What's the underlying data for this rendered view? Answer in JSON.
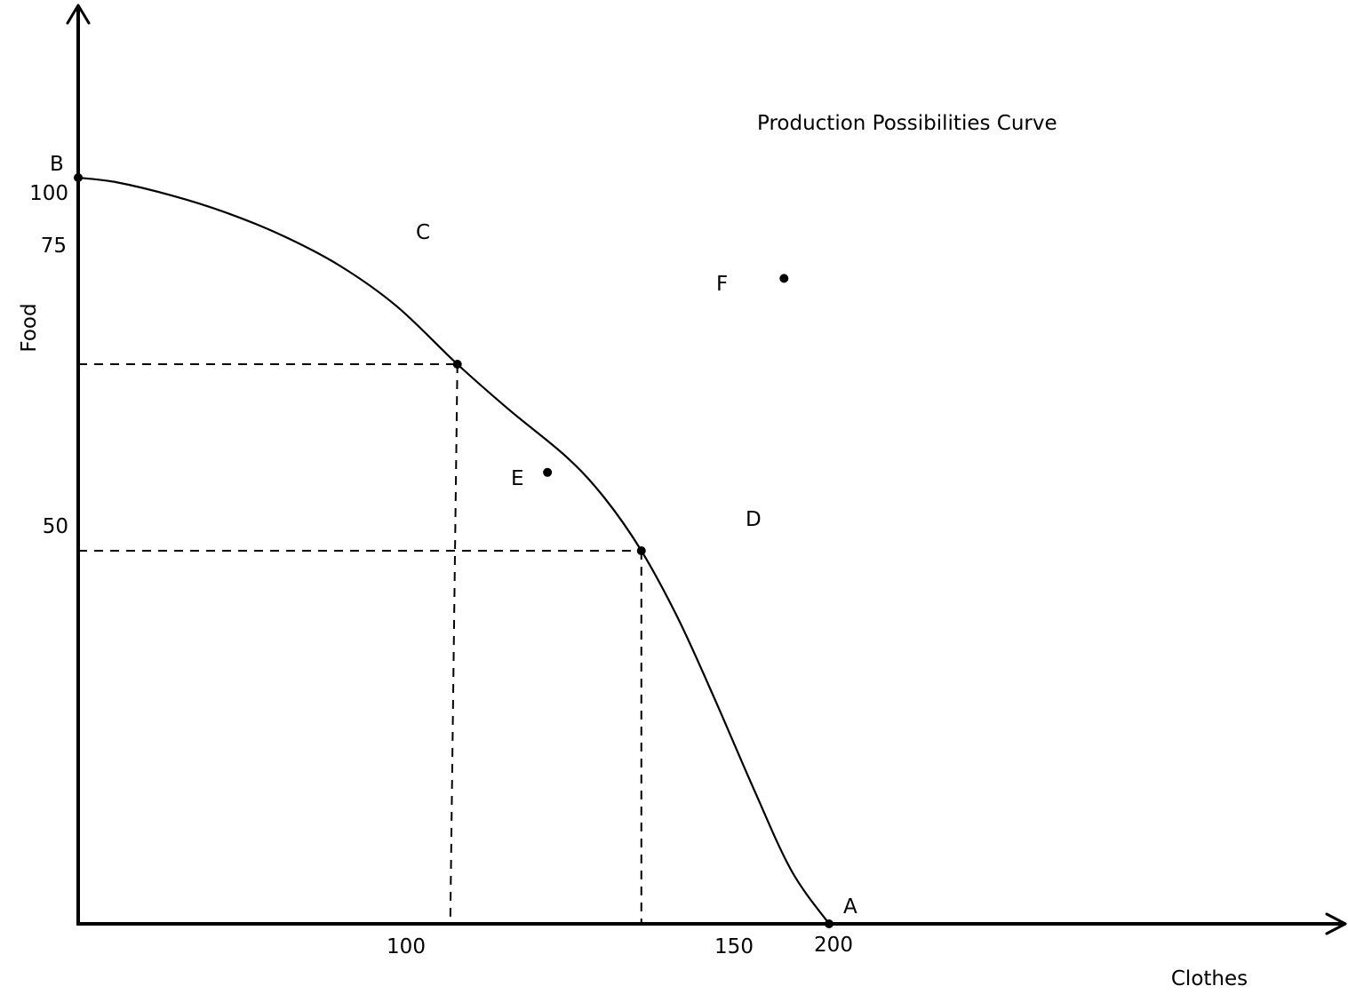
{
  "chart_data": {
    "type": "line",
    "title": "Production Possibilities Curve",
    "xlabel": "Clothes",
    "ylabel": "Food",
    "xlim": [
      0,
      200
    ],
    "ylim": [
      0,
      100
    ],
    "grid": false,
    "xticks": [
      "100",
      "150",
      "200"
    ],
    "yticks": [
      "50",
      "75",
      "100"
    ],
    "series": [
      {
        "x": [
          0,
          10,
          25,
          40,
          55,
          70,
          85,
          101,
          115,
          130,
          140,
          150,
          160,
          170,
          180,
          190,
          200
        ],
        "y": [
          100,
          99.4,
          97.6,
          95.2,
          92.1,
          88.1,
          82.7,
          75,
          68.8,
          62.6,
          57.2,
          50,
          40.7,
          29.6,
          18.0,
          7.1,
          0
        ]
      }
    ],
    "points": [
      {
        "label": "B",
        "x": 0,
        "y": 100
      },
      {
        "label": "C",
        "x": 101,
        "y": 75
      },
      {
        "label": "D",
        "x": 150,
        "y": 50
      },
      {
        "label": "A",
        "x": 200,
        "y": 0
      },
      {
        "label": "E",
        "x": 125,
        "y": 60.5
      },
      {
        "label": "F",
        "x": 188,
        "y": 86.5
      }
    ],
    "guides": [
      {
        "x": 101,
        "y": 75
      },
      {
        "x": 150,
        "y": 50
      }
    ]
  }
}
